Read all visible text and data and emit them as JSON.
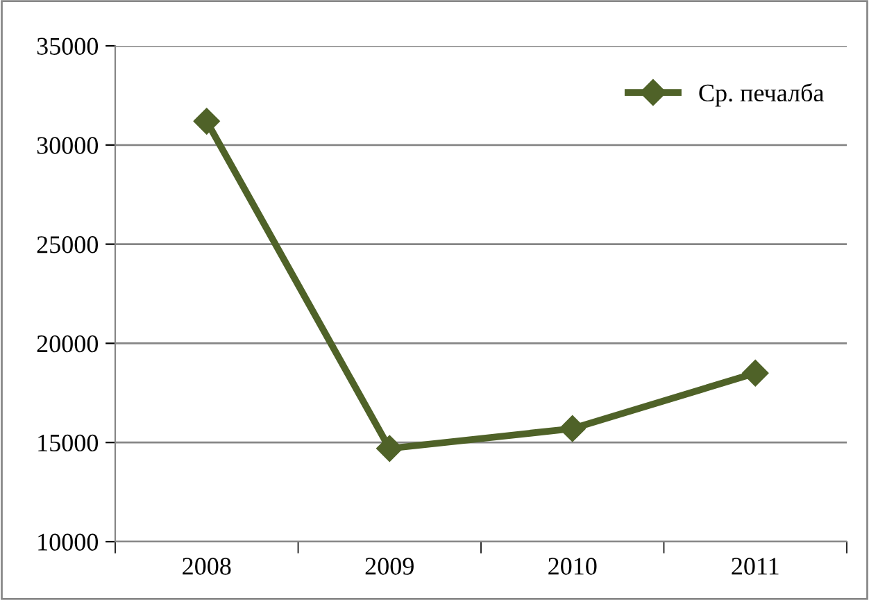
{
  "chart_data": {
    "type": "line",
    "categories": [
      "2008",
      "2009",
      "2010",
      "2011"
    ],
    "series": [
      {
        "name": "Ср. печалба",
        "color": "#4f6228",
        "values": [
          31200,
          14700,
          15700,
          18500
        ]
      }
    ],
    "ylim": [
      10000,
      35000
    ],
    "yticks": [
      10000,
      15000,
      20000,
      25000,
      30000,
      35000
    ],
    "grid": "y",
    "legend": "top right",
    "marker": "diamond",
    "line_style": "solid"
  }
}
